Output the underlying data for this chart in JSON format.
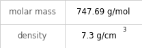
{
  "rows": [
    [
      "molar mass",
      "747.69 g/mol"
    ],
    [
      "density",
      "7.3 g/cm³"
    ]
  ],
  "figsize": [
    2.08,
    0.7
  ],
  "dpi": 100,
  "background_color": "#ffffff",
  "border_color": "#c8c8c8",
  "label_color": "#606060",
  "value_color": "#000000",
  "label_fontsize": 8.5,
  "value_fontsize": 8.5,
  "col_split": 0.455,
  "lw": 0.6
}
